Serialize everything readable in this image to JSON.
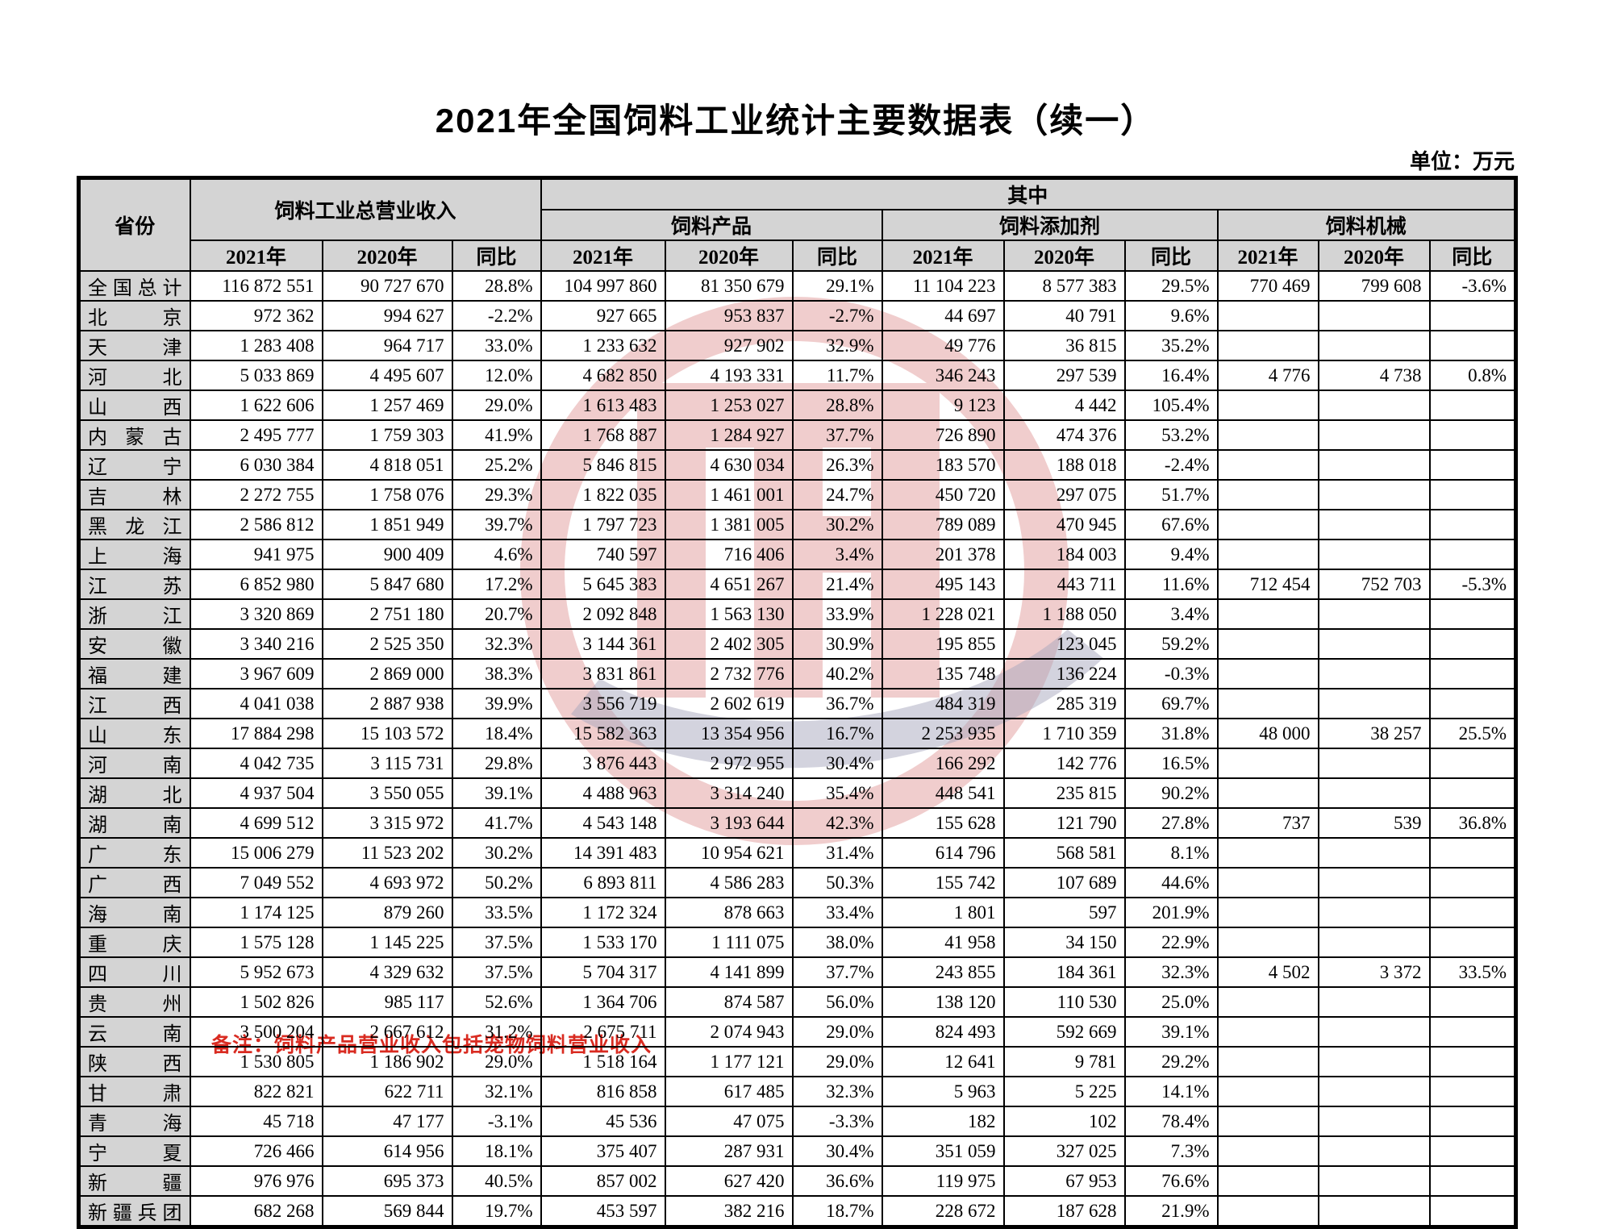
{
  "title": "2021年全国饲料工业统计主要数据表（续一）",
  "unit_label": "单位：万元",
  "note": "备注：饲料产品营业收入包括宠物饲料营业收入",
  "header": {
    "province": "省份",
    "total_revenue": "饲料工业总营业收入",
    "of_which": "其中",
    "groups": [
      "饲料产品",
      "饲料添加剂",
      "饲料机械"
    ],
    "year_cols": [
      "2021年",
      "2020年",
      "同比"
    ]
  },
  "rows": [
    {
      "province": "全国总计",
      "cells": [
        "116 872 551",
        "90 727 670",
        "28.8%",
        "104 997 860",
        "81 350 679",
        "29.1%",
        "11 104 223",
        "8 577 383",
        "29.5%",
        "770 469",
        "799 608",
        "-3.6%"
      ]
    },
    {
      "province": "北京",
      "cells": [
        "972 362",
        "994 627",
        "-2.2%",
        "927 665",
        "953 837",
        "-2.7%",
        "44 697",
        "40 791",
        "9.6%",
        "",
        "",
        ""
      ]
    },
    {
      "province": "天津",
      "cells": [
        "1 283 408",
        "964 717",
        "33.0%",
        "1 233 632",
        "927 902",
        "32.9%",
        "49 776",
        "36 815",
        "35.2%",
        "",
        "",
        ""
      ]
    },
    {
      "province": "河北",
      "cells": [
        "5 033 869",
        "4 495 607",
        "12.0%",
        "4 682 850",
        "4 193 331",
        "11.7%",
        "346 243",
        "297 539",
        "16.4%",
        "4 776",
        "4 738",
        "0.8%"
      ]
    },
    {
      "province": "山西",
      "cells": [
        "1 622 606",
        "1 257 469",
        "29.0%",
        "1 613 483",
        "1 253 027",
        "28.8%",
        "9 123",
        "4 442",
        "105.4%",
        "",
        "",
        ""
      ]
    },
    {
      "province": "内蒙古",
      "cells": [
        "2 495 777",
        "1 759 303",
        "41.9%",
        "1 768 887",
        "1 284 927",
        "37.7%",
        "726 890",
        "474 376",
        "53.2%",
        "",
        "",
        ""
      ]
    },
    {
      "province": "辽宁",
      "cells": [
        "6 030 384",
        "4 818 051",
        "25.2%",
        "5 846 815",
        "4 630 034",
        "26.3%",
        "183 570",
        "188 018",
        "-2.4%",
        "",
        "",
        ""
      ]
    },
    {
      "province": "吉林",
      "cells": [
        "2 272 755",
        "1 758 076",
        "29.3%",
        "1 822 035",
        "1 461 001",
        "24.7%",
        "450 720",
        "297 075",
        "51.7%",
        "",
        "",
        ""
      ]
    },
    {
      "province": "黑龙江",
      "cells": [
        "2 586 812",
        "1 851 949",
        "39.7%",
        "1 797 723",
        "1 381 005",
        "30.2%",
        "789 089",
        "470 945",
        "67.6%",
        "",
        "",
        ""
      ]
    },
    {
      "province": "上海",
      "cells": [
        "941 975",
        "900 409",
        "4.6%",
        "740 597",
        "716 406",
        "3.4%",
        "201 378",
        "184 003",
        "9.4%",
        "",
        "",
        ""
      ]
    },
    {
      "province": "江苏",
      "cells": [
        "6 852 980",
        "5 847 680",
        "17.2%",
        "5 645 383",
        "4 651 267",
        "21.4%",
        "495 143",
        "443 711",
        "11.6%",
        "712 454",
        "752 703",
        "-5.3%"
      ]
    },
    {
      "province": "浙江",
      "cells": [
        "3 320 869",
        "2 751 180",
        "20.7%",
        "2 092 848",
        "1 563 130",
        "33.9%",
        "1 228 021",
        "1 188 050",
        "3.4%",
        "",
        "",
        ""
      ]
    },
    {
      "province": "安徽",
      "cells": [
        "3 340 216",
        "2 525 350",
        "32.3%",
        "3 144 361",
        "2 402 305",
        "30.9%",
        "195 855",
        "123 045",
        "59.2%",
        "",
        "",
        ""
      ]
    },
    {
      "province": "福建",
      "cells": [
        "3 967 609",
        "2 869 000",
        "38.3%",
        "3 831 861",
        "2 732 776",
        "40.2%",
        "135 748",
        "136 224",
        "-0.3%",
        "",
        "",
        ""
      ]
    },
    {
      "province": "江西",
      "cells": [
        "4 041 038",
        "2 887 938",
        "39.9%",
        "3 556 719",
        "2 602 619",
        "36.7%",
        "484 319",
        "285 319",
        "69.7%",
        "",
        "",
        ""
      ]
    },
    {
      "province": "山东",
      "cells": [
        "17 884 298",
        "15 103 572",
        "18.4%",
        "15 582 363",
        "13 354 956",
        "16.7%",
        "2 253 935",
        "1 710 359",
        "31.8%",
        "48 000",
        "38 257",
        "25.5%"
      ]
    },
    {
      "province": "河南",
      "cells": [
        "4 042 735",
        "3 115 731",
        "29.8%",
        "3 876 443",
        "2 972 955",
        "30.4%",
        "166 292",
        "142 776",
        "16.5%",
        "",
        "",
        ""
      ]
    },
    {
      "province": "湖北",
      "cells": [
        "4 937 504",
        "3 550 055",
        "39.1%",
        "4 488 963",
        "3 314 240",
        "35.4%",
        "448 541",
        "235 815",
        "90.2%",
        "",
        "",
        ""
      ]
    },
    {
      "province": "湖南",
      "cells": [
        "4 699 512",
        "3 315 972",
        "41.7%",
        "4 543 148",
        "3 193 644",
        "42.3%",
        "155 628",
        "121 790",
        "27.8%",
        "737",
        "539",
        "36.8%"
      ]
    },
    {
      "province": "广东",
      "cells": [
        "15 006 279",
        "11 523 202",
        "30.2%",
        "14 391 483",
        "10 954 621",
        "31.4%",
        "614 796",
        "568 581",
        "8.1%",
        "",
        "",
        ""
      ]
    },
    {
      "province": "广西",
      "cells": [
        "7 049 552",
        "4 693 972",
        "50.2%",
        "6 893 811",
        "4 586 283",
        "50.3%",
        "155 742",
        "107 689",
        "44.6%",
        "",
        "",
        ""
      ]
    },
    {
      "province": "海南",
      "cells": [
        "1 174 125",
        "879 260",
        "33.5%",
        "1 172 324",
        "878 663",
        "33.4%",
        "1 801",
        "597",
        "201.9%",
        "",
        "",
        ""
      ]
    },
    {
      "province": "重庆",
      "cells": [
        "1 575 128",
        "1 145 225",
        "37.5%",
        "1 533 170",
        "1 111 075",
        "38.0%",
        "41 958",
        "34 150",
        "22.9%",
        "",
        "",
        ""
      ]
    },
    {
      "province": "四川",
      "cells": [
        "5 952 673",
        "4 329 632",
        "37.5%",
        "5 704 317",
        "4 141 899",
        "37.7%",
        "243 855",
        "184 361",
        "32.3%",
        "4 502",
        "3 372",
        "33.5%"
      ]
    },
    {
      "province": "贵州",
      "cells": [
        "1 502 826",
        "985 117",
        "52.6%",
        "1 364 706",
        "874 587",
        "56.0%",
        "138 120",
        "110 530",
        "25.0%",
        "",
        "",
        ""
      ]
    },
    {
      "province": "云南",
      "cells": [
        "3 500 204",
        "2 667 612",
        "31.2%",
        "2 675 711",
        "2 074 943",
        "29.0%",
        "824 493",
        "592 669",
        "39.1%",
        "",
        "",
        ""
      ]
    },
    {
      "province": "陕西",
      "cells": [
        "1 530 805",
        "1 186 902",
        "29.0%",
        "1 518 164",
        "1 177 121",
        "29.0%",
        "12 641",
        "9 781",
        "29.2%",
        "",
        "",
        ""
      ]
    },
    {
      "province": "甘肃",
      "cells": [
        "822 821",
        "622 711",
        "32.1%",
        "816 858",
        "617 485",
        "32.3%",
        "5 963",
        "5 225",
        "14.1%",
        "",
        "",
        ""
      ]
    },
    {
      "province": "青海",
      "cells": [
        "45 718",
        "47 177",
        "-3.1%",
        "45 536",
        "47 075",
        "-3.3%",
        "182",
        "102",
        "78.4%",
        "",
        "",
        ""
      ]
    },
    {
      "province": "宁夏",
      "cells": [
        "726 466",
        "614 956",
        "18.1%",
        "375 407",
        "287 931",
        "30.4%",
        "351 059",
        "327 025",
        "7.3%",
        "",
        "",
        ""
      ]
    },
    {
      "province": "新疆",
      "cells": [
        "976 976",
        "695 373",
        "40.5%",
        "857 002",
        "627 420",
        "36.6%",
        "119 975",
        "67 953",
        "76.6%",
        "",
        "",
        ""
      ]
    },
    {
      "province": "新疆兵团",
      "cells": [
        "682 268",
        "569 844",
        "19.7%",
        "453 597",
        "382 216",
        "18.7%",
        "228 672",
        "187 628",
        "21.9%",
        "",
        "",
        ""
      ]
    }
  ]
}
